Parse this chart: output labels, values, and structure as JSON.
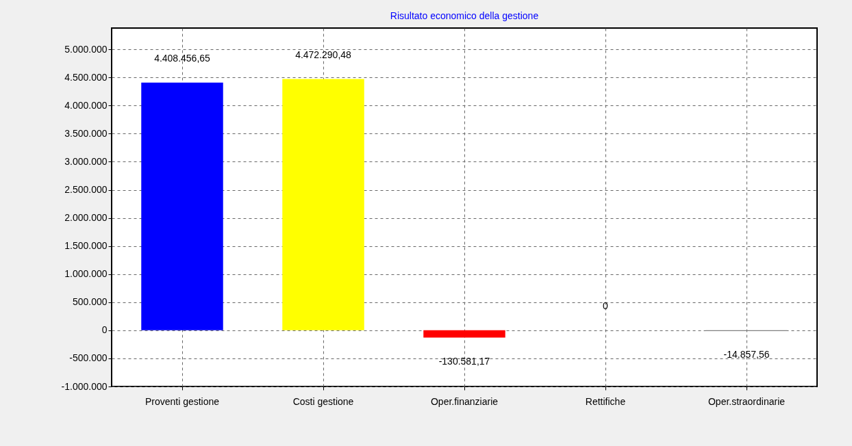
{
  "chart_data": {
    "type": "bar",
    "title": "Risultato economico della gestione",
    "categories": [
      "Proventi gestione",
      "Costi gestione",
      "Oper.finanziarie",
      "Rettifiche",
      "Oper.straordinarie"
    ],
    "values": [
      4408456.65,
      4472290.48,
      -130581.17,
      0,
      -14857.56
    ],
    "colors": [
      "#0000ff",
      "#ffff00",
      "#ff0000",
      "#008000",
      "#808080"
    ],
    "value_labels": [
      "4.408.456,65",
      "4.472.290,48",
      "-130.581,17",
      "0",
      "-14.857,56"
    ],
    "ylim": [
      -1000000,
      5380000
    ],
    "yticks": [
      {
        "value": -1000000,
        "label": "-1.000.000"
      },
      {
        "value": -500000,
        "label": "-500.000"
      },
      0,
      {
        "value": 500000,
        "label": "500.000"
      },
      {
        "value": 1000000,
        "label": "1.000.000"
      },
      {
        "value": 1500000,
        "label": "1.500.000"
      },
      {
        "value": 2000000,
        "label": "2.000.000"
      },
      {
        "value": 2500000,
        "label": "2.500.000"
      },
      {
        "value": 3000000,
        "label": "3.000.000"
      },
      {
        "value": 3500000,
        "label": "3.500.000"
      },
      {
        "value": 4000000,
        "label": "4.000.000"
      },
      {
        "value": 4500000,
        "label": "4.500.000"
      },
      {
        "value": 5000000,
        "label": "5.000.000"
      }
    ],
    "grid": true,
    "legend": false
  }
}
